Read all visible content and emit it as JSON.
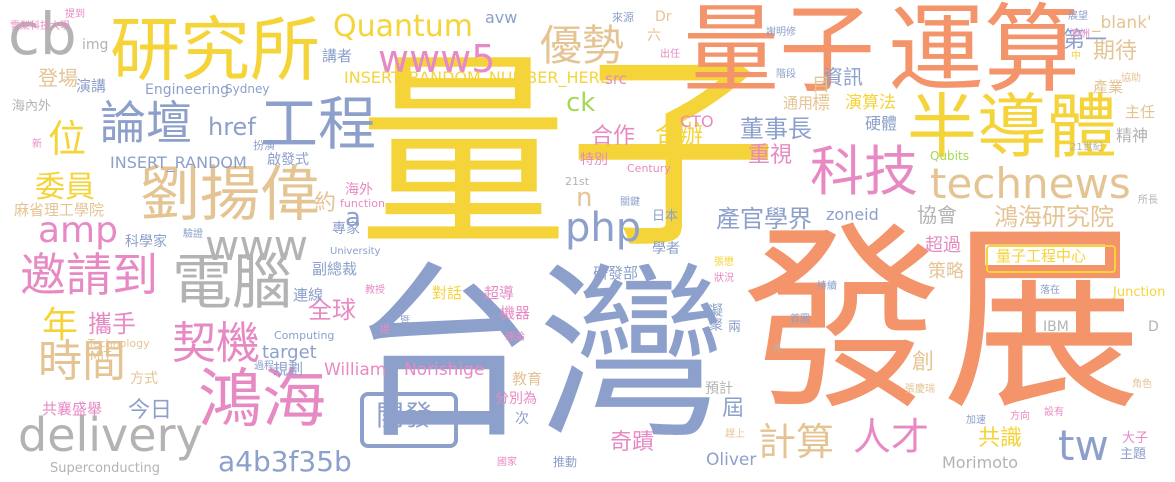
{
  "cloud": {
    "words": [
      {
        "text": "量子",
        "color": "#f5d43a"
      },
      {
        "text": "發展",
        "color": "#f3946b"
      },
      {
        "text": "台灣",
        "color": "#8da0cb"
      },
      {
        "text": "量子",
        "color": "#f3946b"
      },
      {
        "text": "運算",
        "color": "#f3946b"
      },
      {
        "text": "半導體",
        "color": "#f5d43a"
      },
      {
        "text": "研究所",
        "color": "#f5d43a"
      },
      {
        "text": "鴻海",
        "color": "#e78ac3"
      },
      {
        "text": "劉揚偉",
        "color": "#e5c494"
      },
      {
        "text": "電腦",
        "color": "#b3b3b3"
      },
      {
        "text": "工程",
        "color": "#8da0cb"
      },
      {
        "text": "科技",
        "color": "#e78ac3"
      },
      {
        "text": "technews",
        "color": "#e5c494"
      },
      {
        "text": "delivery",
        "color": "#b3b3b3"
      },
      {
        "text": "論壇",
        "color": "#8da0cb"
      },
      {
        "text": "邀請到",
        "color": "#e78ac3"
      },
      {
        "text": "契機",
        "color": "#e78ac3"
      },
      {
        "text": "時間",
        "color": "#e5c494"
      },
      {
        "text": "www",
        "color": "#b3b3b3"
      },
      {
        "text": "優勢",
        "color": "#e5c494"
      },
      {
        "text": "cb",
        "color": "#b3b3b3"
      },
      {
        "text": "Quantum",
        "color": "#f5d43a"
      },
      {
        "text": "www5",
        "color": "#e78ac3"
      },
      {
        "text": "amp",
        "color": "#e78ac3"
      },
      {
        "text": "php",
        "color": "#8da0cb"
      },
      {
        "text": "計算",
        "color": "#e5c494"
      },
      {
        "text": "人才",
        "color": "#e78ac3"
      },
      {
        "text": "位",
        "color": "#f5d43a"
      },
      {
        "text": "年",
        "color": "#f5d43a"
      },
      {
        "text": "委員",
        "color": "#f5d43a"
      },
      {
        "text": "tw",
        "color": "#8da0cb"
      },
      {
        "text": "a4b3f35b",
        "color": "#8da0cb"
      },
      {
        "text": "開發",
        "color": "#8da0cb"
      },
      {
        "text": "鴻海研究院",
        "color": "#e5c494"
      },
      {
        "text": "產官學界",
        "color": "#8da0cb"
      },
      {
        "text": "董事長",
        "color": "#8da0cb"
      },
      {
        "text": "合作",
        "color": "#e78ac3"
      },
      {
        "text": "合辦",
        "color": "#f5d43a"
      },
      {
        "text": "ck",
        "color": "#a6d854"
      },
      {
        "text": "第一",
        "color": "#8da0cb"
      },
      {
        "text": "期待",
        "color": "#e5c494"
      },
      {
        "text": "資訊",
        "color": "#8da0cb"
      },
      {
        "text": "href",
        "color": "#8da0cb"
      },
      {
        "text": "重視",
        "color": "#e78ac3"
      },
      {
        "text": "全球",
        "color": "#e78ac3"
      },
      {
        "text": "攜手",
        "color": "#e78ac3"
      },
      {
        "text": "奇蹟",
        "color": "#e78ac3"
      },
      {
        "text": "共識",
        "color": "#f5d43a"
      },
      {
        "text": "協會",
        "color": "#b3b3b3"
      },
      {
        "text": "今日",
        "color": "#8da0cb"
      },
      {
        "text": "創",
        "color": "#e5c494"
      },
      {
        "text": "屆",
        "color": "#8da0cb"
      },
      {
        "text": "登場",
        "color": "#e5c494"
      },
      {
        "text": "n",
        "color": "#e5c494"
      },
      {
        "text": "a",
        "color": "#8da0cb"
      },
      {
        "text": "約",
        "color": "#e5c494"
      },
      {
        "text": "zoneid",
        "color": "#8da0cb"
      },
      {
        "text": "策略",
        "color": "#e5c494"
      },
      {
        "text": "超過",
        "color": "#e78ac3"
      },
      {
        "text": "量子工程中心",
        "color": "#f5d43a"
      },
      {
        "text": "目標",
        "color": "#e5c494"
      },
      {
        "text": "演算法",
        "color": "#f5d43a"
      },
      {
        "text": "硬體",
        "color": "#8da0cb"
      },
      {
        "text": "精神",
        "color": "#b3b3b3"
      },
      {
        "text": "主任",
        "color": "#e5c494"
      },
      {
        "text": "產業",
        "color": "#e5c494"
      },
      {
        "text": "通用",
        "color": "#e5c494"
      },
      {
        "text": "INSERT_RANDOM_NUMBER_HERE'",
        "color": "#f5d43a"
      },
      {
        "text": "INSERT_RANDOM",
        "color": "#8da0cb"
      },
      {
        "text": "Engineering",
        "color": "#8da0cb"
      },
      {
        "text": "CTO",
        "color": "#e78ac3"
      },
      {
        "text": "target",
        "color": "#8da0cb"
      },
      {
        "text": "William",
        "color": "#e78ac3"
      },
      {
        "text": "Norishige",
        "color": "#e78ac3"
      },
      {
        "text": "Oliver",
        "color": "#8da0cb"
      },
      {
        "text": "Morimoto",
        "color": "#b3b3b3"
      },
      {
        "text": "Superconducting",
        "color": "#b3b3b3"
      },
      {
        "text": "麻省理工學院",
        "color": "#e5c494"
      },
      {
        "text": "演講",
        "color": "#8da0cb"
      },
      {
        "text": "講者",
        "color": "#8da0cb"
      },
      {
        "text": "src",
        "color": "#e78ac3"
      },
      {
        "text": "img",
        "color": "#b3b3b3"
      },
      {
        "text": "avw",
        "color": "#8da0cb"
      },
      {
        "text": "Dr",
        "color": "#e5c494"
      },
      {
        "text": "六",
        "color": "#e5c494"
      },
      {
        "text": "啟發式",
        "color": "#8da0cb"
      },
      {
        "text": "特別",
        "color": "#e78ac3"
      },
      {
        "text": "研發部",
        "color": "#8da0cb"
      },
      {
        "text": "對話",
        "color": "#f5d43a"
      },
      {
        "text": "超導",
        "color": "#e78ac3"
      },
      {
        "text": "機器",
        "color": "#e78ac3"
      },
      {
        "text": "教育",
        "color": "#e5c494"
      },
      {
        "text": "分別為",
        "color": "#e78ac3"
      },
      {
        "text": "副總裁",
        "color": "#8da0cb"
      },
      {
        "text": "連線",
        "color": "#8da0cb"
      },
      {
        "text": "規劃",
        "color": "#8da0cb"
      },
      {
        "text": "方式",
        "color": "#e5c494"
      },
      {
        "text": "共襄盛舉",
        "color": "#e78ac3"
      },
      {
        "text": "預計",
        "color": "#b3b3b3"
      },
      {
        "text": "學者",
        "color": "#8da0cb"
      },
      {
        "text": "專家",
        "color": "#8da0cb"
      },
      {
        "text": "科學家",
        "color": "#8da0cb"
      },
      {
        "text": "海外",
        "color": "#e78ac3"
      },
      {
        "text": "日本",
        "color": "#8da0cb"
      },
      {
        "text": "推動",
        "color": "#8da0cb"
      },
      {
        "text": "_blank'",
        "color": "#e5c494"
      },
      {
        "text": "Qubits",
        "color": "#a6d854"
      },
      {
        "text": "Junction",
        "color": "#f5d43a"
      },
      {
        "text": "IBM",
        "color": "#b3b3b3"
      },
      {
        "text": "D",
        "color": "#b3b3b3"
      },
      {
        "text": "大子",
        "color": "#e78ac3"
      },
      {
        "text": "主題",
        "color": "#8da0cb"
      },
      {
        "text": "凝聚",
        "color": "#8da0cb"
      },
      {
        "text": "兩",
        "color": "#8da0cb"
      },
      {
        "text": "次",
        "color": "#8da0cb"
      },
      {
        "text": "提到",
        "color": "#e78ac3"
      },
      {
        "text": "雪梨科技大學",
        "color": "#e78ac3"
      },
      {
        "text": "海內外",
        "color": "#b3b3b3"
      },
      {
        "text": "Sydney",
        "color": "#8da0cb"
      },
      {
        "text": "扮演",
        "color": "#8da0cb"
      },
      {
        "text": "新",
        "color": "#e78ac3"
      },
      {
        "text": "Century",
        "color": "#e78ac3"
      },
      {
        "text": "21st",
        "color": "#b3b3b3"
      },
      {
        "text": "21世紀",
        "color": "#b3b3b3"
      },
      {
        "text": "關鍵",
        "color": "#8da0cb"
      },
      {
        "text": "function",
        "color": "#e78ac3"
      },
      {
        "text": "University",
        "color": "#8da0cb"
      },
      {
        "text": "驗證",
        "color": "#8da0cb"
      },
      {
        "text": "Technology",
        "color": "#e5c494"
      },
      {
        "text": "MIT",
        "color": "#e5c494"
      },
      {
        "text": "Computing",
        "color": "#8da0cb"
      },
      {
        "text": "過程",
        "color": "#8da0cb"
      },
      {
        "text": "教授",
        "color": "#e78ac3"
      },
      {
        "text": "理論",
        "color": "#e78ac3"
      },
      {
        "text": "提",
        "color": "#e78ac3"
      },
      {
        "text": "暨",
        "color": "#8da0cb"
      },
      {
        "text": "張懋",
        "color": "#f5d43a"
      },
      {
        "text": "狀況",
        "color": "#e78ac3"
      },
      {
        "text": "持續",
        "color": "#8da0cb"
      },
      {
        "text": "首圖",
        "color": "#8da0cb"
      },
      {
        "text": "外",
        "color": "#b3b3b3"
      },
      {
        "text": "落在",
        "color": "#8da0cb"
      },
      {
        "text": "張慶瑞",
        "color": "#e5c494"
      },
      {
        "text": "加速",
        "color": "#8da0cb"
      },
      {
        "text": "方向",
        "color": "#e78ac3"
      },
      {
        "text": "設有",
        "color": "#e78ac3"
      },
      {
        "text": "角色",
        "color": "#e5c494"
      },
      {
        "text": "趕上",
        "color": "#e5c494"
      },
      {
        "text": "國家",
        "color": "#e78ac3"
      },
      {
        "text": "來源",
        "color": "#8da0cb"
      },
      {
        "text": "出任",
        "color": "#e78ac3"
      },
      {
        "text": "謝明修",
        "color": "#8da0cb"
      },
      {
        "text": "階段",
        "color": "#8da0cb"
      },
      {
        "text": "展望",
        "color": "#8da0cb"
      },
      {
        "text": "澳洲",
        "color": "#e78ac3"
      },
      {
        "text": "中",
        "color": "#f5d43a"
      },
      {
        "text": "協助",
        "color": "#e5c494"
      },
      {
        "text": "所長",
        "color": "#b3b3b3"
      }
    ]
  }
}
